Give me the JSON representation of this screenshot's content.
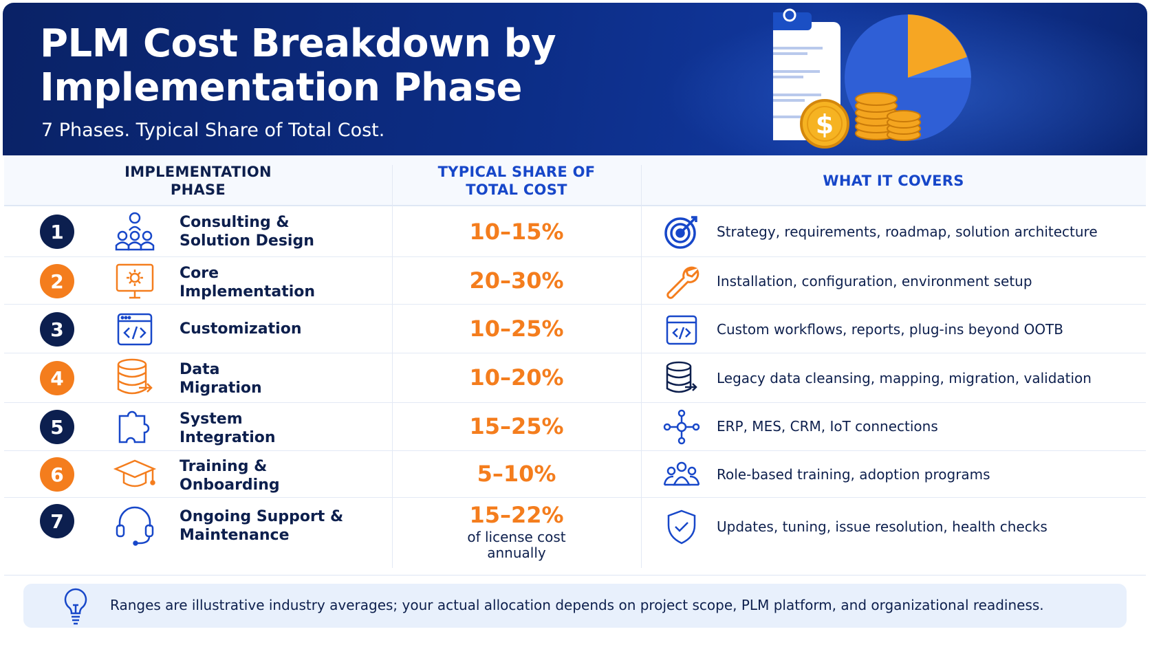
{
  "header": {
    "title_line1": "PLM Cost Breakdown by",
    "title_line2": "Implementation Phase",
    "subtitle": "7 Phases. Typical Share of Total Cost."
  },
  "table": {
    "columns": {
      "phase_line1": "IMPLEMENTATION",
      "phase_line2": "PHASE",
      "share_line1": "TYPICAL SHARE OF",
      "share_line2": "TOTAL COST",
      "covers": "WHAT IT COVERS"
    },
    "rows": [
      {
        "number": "1",
        "name_line1": "Consulting &",
        "name_line2": "Solution Design",
        "share": "10–15%",
        "covers": "Strategy, requirements, roadmap, solution architecture",
        "phase_icon": "consulting-team-icon",
        "covers_icon": "target-icon"
      },
      {
        "number": "2",
        "name_line1": "Core",
        "name_line2": "Implementation",
        "share": "20–30%",
        "covers": "Installation, configuration, environment setup",
        "phase_icon": "monitor-gear-icon",
        "covers_icon": "wrench-icon"
      },
      {
        "number": "3",
        "name_line1": "Customization",
        "name_line2": "",
        "share": "10–25%",
        "covers": "Custom workflows, reports, plug-ins beyond OOTB",
        "phase_icon": "code-window-icon",
        "covers_icon": "code-window-icon"
      },
      {
        "number": "4",
        "name_line1": "Data",
        "name_line2": "Migration",
        "share": "10–20%",
        "covers": "Legacy data cleansing, mapping, migration, validation",
        "phase_icon": "database-arrow-icon",
        "covers_icon": "database-arrow-icon"
      },
      {
        "number": "5",
        "name_line1": "System",
        "name_line2": "Integration",
        "share": "15–25%",
        "covers": "ERP, MES, CRM, IoT connections",
        "phase_icon": "puzzle-icon",
        "covers_icon": "network-hub-icon"
      },
      {
        "number": "6",
        "name_line1": "Training &",
        "name_line2": "Onboarding",
        "share": "5–10%",
        "covers": "Role-based training, adoption programs",
        "phase_icon": "graduation-cap-icon",
        "covers_icon": "people-group-icon"
      },
      {
        "number": "7",
        "name_line1": "Ongoing Support &",
        "name_line2": "Maintenance",
        "share": "15–22%",
        "share_note_line1": "of license cost",
        "share_note_line2": "annually",
        "covers": "Updates, tuning, issue resolution, health checks",
        "phase_icon": "headset-icon",
        "covers_icon": "shield-check-icon"
      }
    ]
  },
  "note": {
    "text": "Ranges are illustrative industry averages; your actual allocation depends on project scope, PLM platform, and organizational readiness.",
    "icon": "lightbulb-icon"
  },
  "hero_icon": "clipboard-pie-coins-icon",
  "colors": {
    "navy": "#0c1f4f",
    "orange": "#f47d1d",
    "blue": "#1747c9",
    "header": "#0c2d86"
  }
}
